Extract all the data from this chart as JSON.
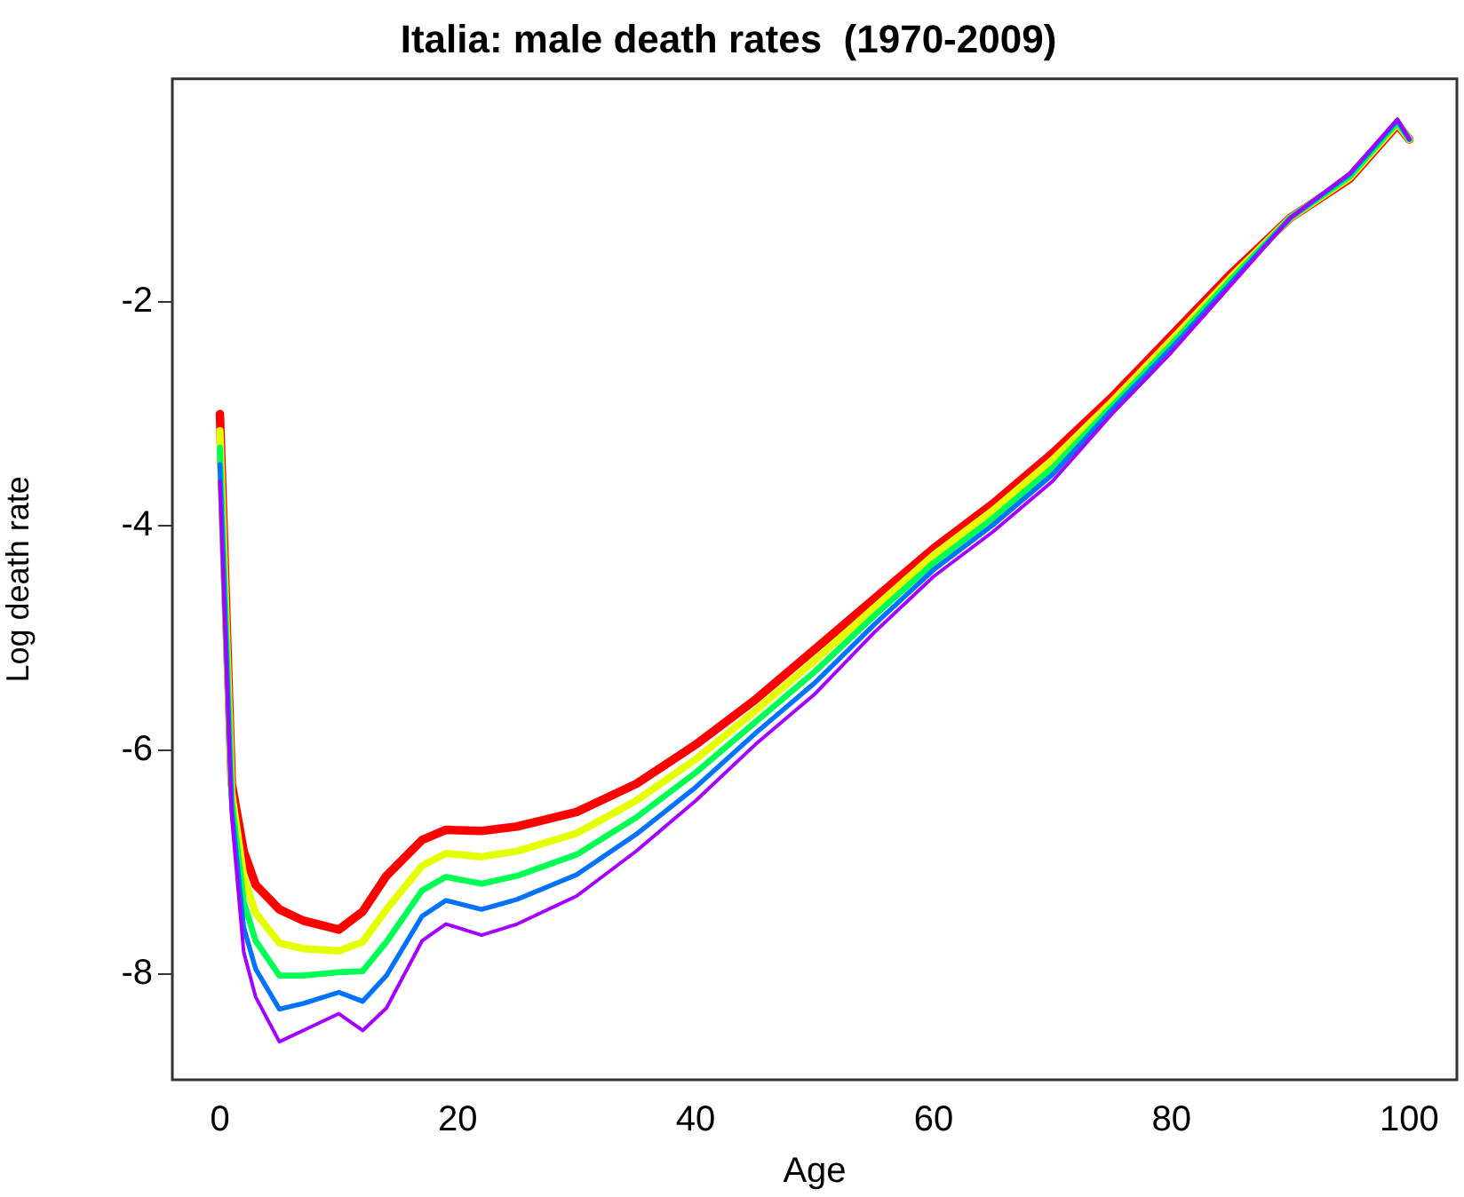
{
  "chart_data": {
    "type": "line",
    "title": "Italia: male death rates  (1970-2009)",
    "xlabel": "Age",
    "ylabel": "Log death rate",
    "x": [
      0,
      1,
      2,
      3,
      5,
      7,
      10,
      12,
      14,
      17,
      19,
      22,
      25,
      30,
      35,
      40,
      45,
      50,
      55,
      60,
      65,
      70,
      75,
      80,
      85,
      90,
      95,
      99,
      100
    ],
    "series": [
      {
        "color": "#ff0000",
        "values": [
          -3.0,
          -6.3,
          -6.9,
          -7.2,
          -7.42,
          -7.52,
          -7.6,
          -7.44,
          -7.12,
          -6.8,
          -6.71,
          -6.72,
          -6.68,
          -6.55,
          -6.3,
          -5.95,
          -5.55,
          -5.1,
          -4.65,
          -4.2,
          -3.8,
          -3.35,
          -2.85,
          -2.3,
          -1.75,
          -1.25,
          -0.9,
          -0.42,
          -0.55
        ]
      },
      {
        "color": "#e5ff00",
        "values": [
          -3.15,
          -6.38,
          -7.13,
          -7.45,
          -7.72,
          -7.77,
          -7.79,
          -7.71,
          -7.42,
          -7.03,
          -6.92,
          -6.95,
          -6.9,
          -6.74,
          -6.45,
          -6.08,
          -5.65,
          -5.2,
          -4.73,
          -4.26,
          -3.86,
          -3.41,
          -2.89,
          -2.34,
          -1.78,
          -1.25,
          -0.89,
          -0.41,
          -0.55
        ]
      },
      {
        "color": "#00ff54",
        "values": [
          -3.3,
          -6.45,
          -7.35,
          -7.7,
          -8.01,
          -8.01,
          -7.98,
          -7.97,
          -7.71,
          -7.25,
          -7.13,
          -7.19,
          -7.12,
          -6.93,
          -6.6,
          -6.2,
          -5.75,
          -5.3,
          -4.8,
          -4.33,
          -3.93,
          -3.48,
          -2.93,
          -2.38,
          -1.8,
          -1.25,
          -0.88,
          -0.4,
          -0.55
        ]
      },
      {
        "color": "#0072ff",
        "values": [
          -3.45,
          -6.53,
          -7.58,
          -7.95,
          -8.31,
          -8.26,
          -8.16,
          -8.24,
          -8.01,
          -7.48,
          -7.34,
          -7.42,
          -7.33,
          -7.11,
          -6.75,
          -6.33,
          -5.85,
          -5.4,
          -4.88,
          -4.39,
          -3.99,
          -3.54,
          -2.96,
          -2.41,
          -1.83,
          -1.25,
          -0.86,
          -0.38,
          -0.55
        ]
      },
      {
        "color": "#a500ff",
        "values": [
          -3.6,
          -6.6,
          -7.8,
          -8.2,
          -8.6,
          -8.5,
          -8.35,
          -8.5,
          -8.3,
          -7.7,
          -7.55,
          -7.65,
          -7.55,
          -7.3,
          -6.9,
          -6.45,
          -5.95,
          -5.5,
          -4.95,
          -4.45,
          -4.05,
          -3.6,
          -3.0,
          -2.45,
          -1.85,
          -1.25,
          -0.85,
          -0.37,
          -0.55
        ]
      }
    ],
    "xlim": [
      -4,
      104
    ],
    "xticks": [
      0,
      20,
      40,
      60,
      80,
      100
    ],
    "ylim": [
      -8.94,
      -0.01
    ],
    "yticks": [
      -8,
      -6,
      -4,
      -2
    ],
    "grid": false,
    "legend": false,
    "marker": "none",
    "line_style": "solid"
  }
}
